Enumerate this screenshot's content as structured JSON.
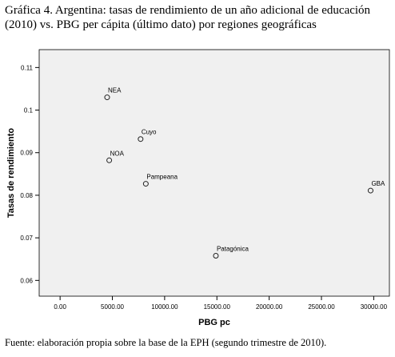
{
  "title": "Gráfica 4. Argentina: tasas de rendimiento de un año adicional de educación (2010) vs. PBG per cápita (último dato) por regiones geográficas",
  "source": "Fuente: elaboración propia sobre la base de  la EPH (segundo trimestre de 2010).",
  "chart_data": {
    "type": "scatter",
    "xlabel": "PBG pc",
    "ylabel": "Tasas de rendimiento",
    "xlim": [
      -2000,
      31500
    ],
    "ylim": [
      0.0563,
      0.1142
    ],
    "xticks": [
      0,
      5000,
      10000,
      15000,
      20000,
      25000,
      30000
    ],
    "xtick_labels": [
      "0.00",
      "5000.00",
      "10000.00",
      "15000.00",
      "20000.00",
      "25000.00",
      "30000.00"
    ],
    "yticks": [
      0.06,
      0.07,
      0.08,
      0.09,
      0.1,
      0.11
    ],
    "ytick_labels": [
      "0.06",
      "0.07",
      "0.08",
      "0.09",
      "0.1",
      "0.11"
    ],
    "grid": false,
    "points": [
      {
        "label": "NEA",
        "x": 4500,
        "y": 0.103
      },
      {
        "label": "Cuyo",
        "x": 7700,
        "y": 0.0932
      },
      {
        "label": "NOA",
        "x": 4700,
        "y": 0.0882
      },
      {
        "label": "Pampeana",
        "x": 8200,
        "y": 0.0827
      },
      {
        "label": "GBA",
        "x": 29700,
        "y": 0.0811
      },
      {
        "label": "Patagónica",
        "x": 14900,
        "y": 0.0658
      }
    ],
    "colors": {
      "plot_background": "#f0f0f0",
      "marker_stroke": "#222222",
      "axis": "#000000"
    }
  }
}
